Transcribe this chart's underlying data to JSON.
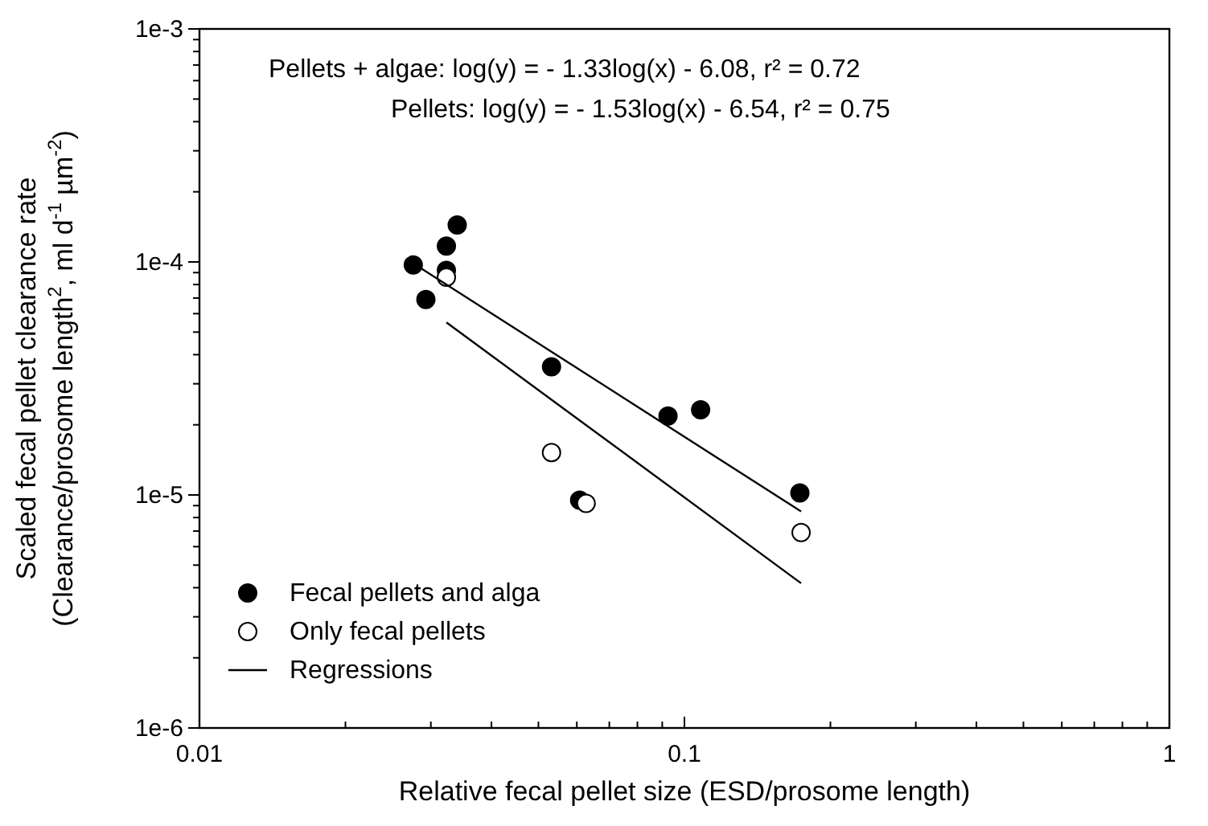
{
  "chart_data": {
    "type": "scatter",
    "xlabel": "Relative fecal pellet size (ESD/prosome length)",
    "ylabel": "Scaled fecal pellet clearance rate\n(Clearance/prosome length$^{2}$, ml d$^{-1}$ µm$^{-2}$)",
    "log": "xy",
    "xlim": [
      0.01,
      1
    ],
    "ylim": [
      1e-06,
      0.001
    ],
    "xticks": [
      {
        "value": 0.01,
        "label": "0.01"
      },
      {
        "value": 0.02,
        "label": null
      },
      {
        "value": 0.03,
        "label": null
      },
      {
        "value": 0.04,
        "label": null
      },
      {
        "value": 0.05,
        "label": null
      },
      {
        "value": 0.06,
        "label": null
      },
      {
        "value": 0.07,
        "label": null
      },
      {
        "value": 0.08,
        "label": null
      },
      {
        "value": 0.09,
        "label": null
      },
      {
        "value": 0.1,
        "label": "0.1"
      },
      {
        "value": 0.2,
        "label": null
      },
      {
        "value": 0.3,
        "label": null
      },
      {
        "value": 0.4,
        "label": null
      },
      {
        "value": 0.5,
        "label": null
      },
      {
        "value": 0.6,
        "label": null
      },
      {
        "value": 0.7,
        "label": null
      },
      {
        "value": 0.8,
        "label": null
      },
      {
        "value": 0.9,
        "label": null
      },
      {
        "value": 1,
        "label": "1"
      }
    ],
    "yticks": [
      {
        "value": 1e-06,
        "label": "1e-6"
      },
      {
        "value": 2e-06,
        "label": null
      },
      {
        "value": 3e-06,
        "label": null
      },
      {
        "value": 4e-06,
        "label": null
      },
      {
        "value": 5e-06,
        "label": null
      },
      {
        "value": 6e-06,
        "label": null
      },
      {
        "value": 7e-06,
        "label": null
      },
      {
        "value": 8e-06,
        "label": null
      },
      {
        "value": 9e-06,
        "label": null
      },
      {
        "value": 1e-05,
        "label": "1e-5"
      },
      {
        "value": 2e-05,
        "label": null
      },
      {
        "value": 3e-05,
        "label": null
      },
      {
        "value": 4e-05,
        "label": null
      },
      {
        "value": 5e-05,
        "label": null
      },
      {
        "value": 6e-05,
        "label": null
      },
      {
        "value": 7e-05,
        "label": null
      },
      {
        "value": 8e-05,
        "label": null
      },
      {
        "value": 9e-05,
        "label": null
      },
      {
        "value": 0.0001,
        "label": "1e-4"
      },
      {
        "value": 0.0002,
        "label": null
      },
      {
        "value": 0.0003,
        "label": null
      },
      {
        "value": 0.0004,
        "label": null
      },
      {
        "value": 0.0005,
        "label": null
      },
      {
        "value": 0.0006,
        "label": null
      },
      {
        "value": 0.0007,
        "label": null
      },
      {
        "value": 0.0008,
        "label": null
      },
      {
        "value": 0.0009,
        "label": null
      },
      {
        "value": 0.001,
        "label": "1e-3"
      }
    ],
    "grid": false,
    "legend": "bottom left",
    "marker": "circle",
    "annotations": [
      "Pellets + algae: log(y) = - 1.33log(x) - 6.08, r² = 0.72",
      "Pellets: log(y) = - 1.53log(x) - 6.54, r² = 0.75"
    ],
    "series": [
      {
        "name": "Fecal pellets and alga",
        "color": "#000000",
        "x": [
          0.0276,
          0.0293,
          0.0323,
          0.034,
          0.0323,
          0.0532,
          0.0925,
          0.108,
          0.0608,
          0.173
        ],
        "values": [
          9.7e-05,
          6.9e-05,
          0.000117,
          0.000144,
          9.2e-05,
          3.55e-05,
          2.18e-05,
          2.32e-05,
          9.5e-06,
          1.02e-05
        ]
      },
      {
        "name": "Only fecal pellets",
        "color": "#ffffff",
        "x": [
          0.0323,
          0.0532,
          0.0627,
          0.174
        ],
        "values": [
          8.6e-05,
          1.52e-05,
          9.2e-06,
          6.9e-06
        ]
      },
      {
        "name": "Regressions",
        "type": "line",
        "color": "#000000",
        "line_style": "solid",
        "marker": "none",
        "x": [
          0.0286,
          0.174
        ],
        "values": [
          9.4e-05,
          8.5e-06
        ]
      },
      {
        "type": "line",
        "color": "#000000",
        "line_style": "solid",
        "marker": "none",
        "x": [
          0.0323,
          0.174
        ],
        "values": [
          5.5e-05,
          4.18e-06
        ]
      }
    ]
  }
}
